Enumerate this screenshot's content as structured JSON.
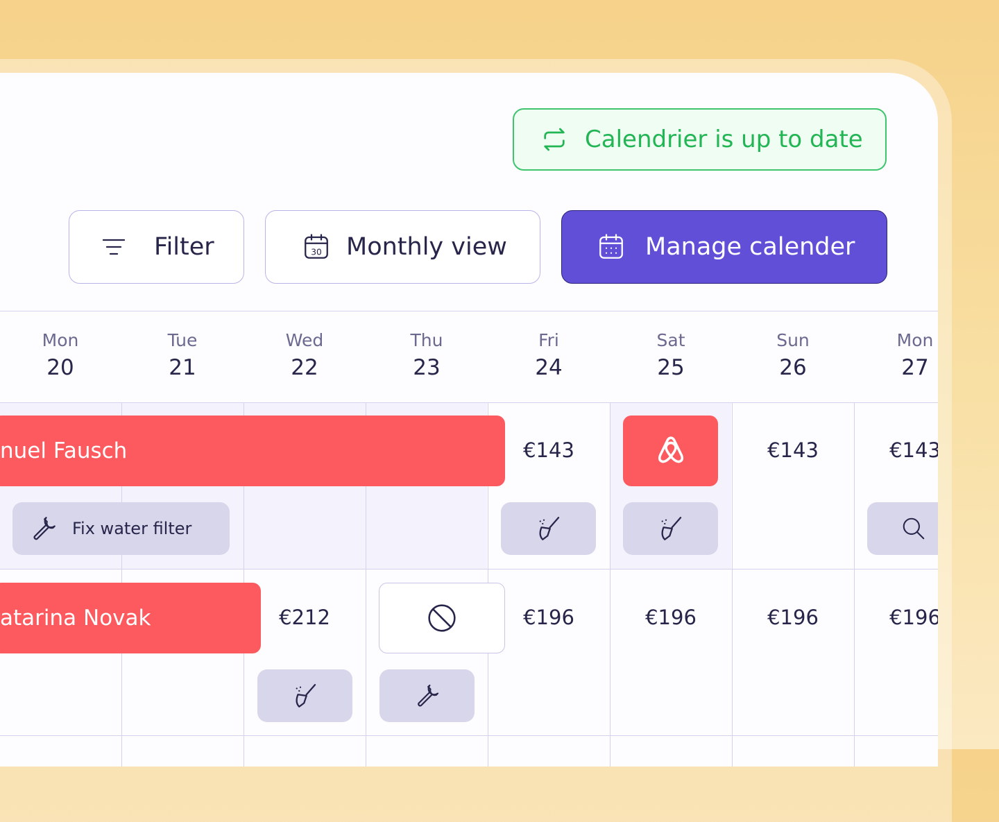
{
  "status": "Calendrier is up to date",
  "toolbar": {
    "filter": "Filter",
    "monthly_view": "Monthly view",
    "manage": "Manage calender"
  },
  "days": [
    {
      "weekday": "Mon",
      "date": "20"
    },
    {
      "weekday": "Tue",
      "date": "21"
    },
    {
      "weekday": "Wed",
      "date": "22"
    },
    {
      "weekday": "Thu",
      "date": "23"
    },
    {
      "weekday": "Fri",
      "date": "24"
    },
    {
      "weekday": "Sat",
      "date": "25"
    },
    {
      "weekday": "Sun",
      "date": "26"
    },
    {
      "weekday": "Mon",
      "date": "27"
    }
  ],
  "rows": [
    {
      "booking": "nuel Fausch",
      "task": "Fix water filter",
      "prices": {
        "fri": "€143",
        "sun": "€143",
        "mon": "€143"
      }
    },
    {
      "booking": "atarina Novak",
      "prices": {
        "wed": "€212",
        "fri": "€196",
        "sat": "€196",
        "sun": "€196",
        "mon": "€196"
      }
    }
  ]
}
